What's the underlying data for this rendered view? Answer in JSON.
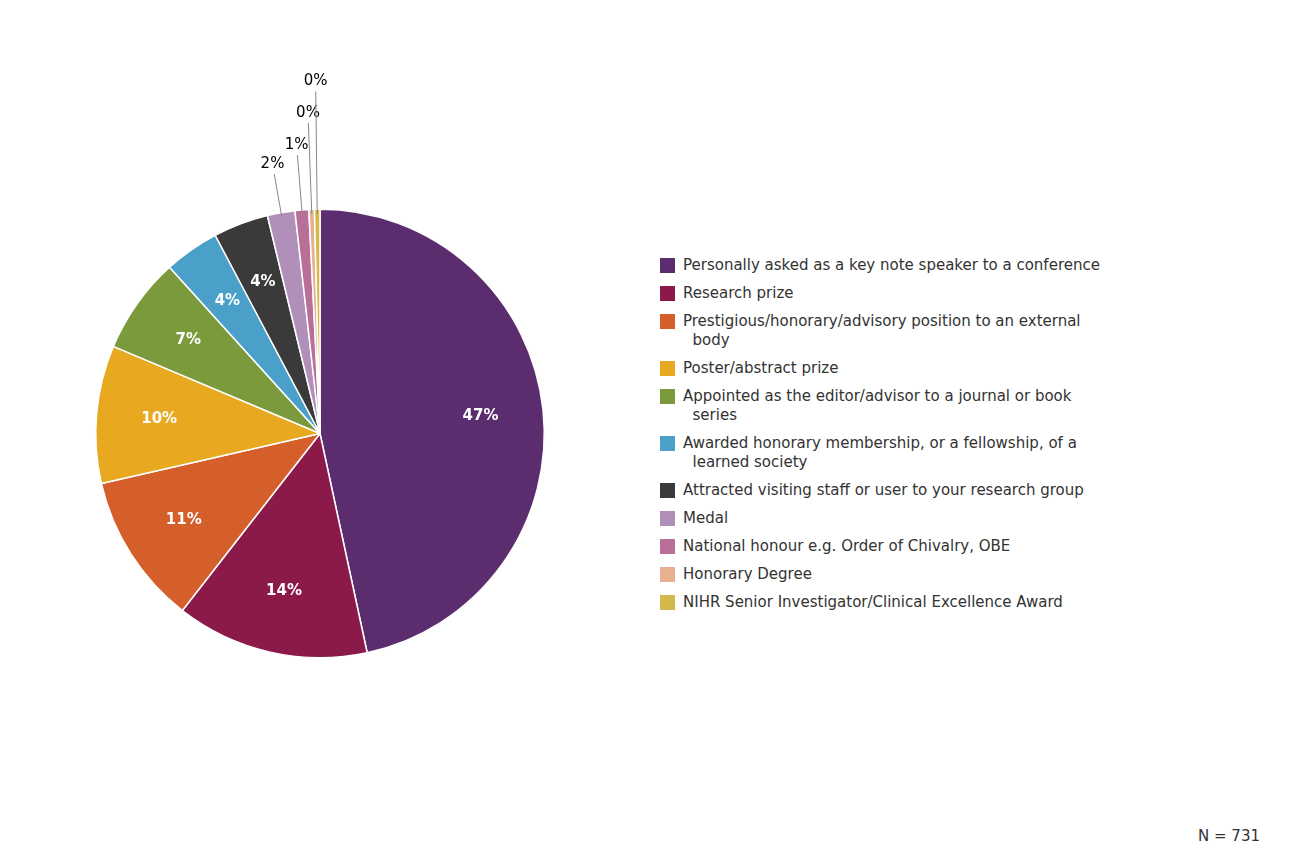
{
  "chart_data": {
    "type": "pie",
    "categories": [
      "Personally asked as a key note speaker to a conference",
      "Research prize",
      "Prestigious/honorary/advisory position to an external\n  body",
      "Poster/abstract prize",
      "Appointed as the editor/advisor to a journal or book\n  series",
      "Awarded honorary membership, or a fellowship, of a\n  learned society",
      "Attracted visiting staff or user to your research group",
      "Medal",
      "National honour e.g. Order of Chivalry, OBE",
      "Honorary Degree",
      "NIHR Senior Investigator/Clinical Excellence Award"
    ],
    "values": [
      47,
      14,
      11,
      10,
      7,
      4,
      4,
      2,
      1,
      0.4,
      0.4
    ],
    "value_labels": [
      "47%",
      "14%",
      "11%",
      "10%",
      "7%",
      "4%",
      "4%",
      "2%",
      "1%",
      "0%",
      "0%"
    ],
    "colors": [
      "#5c2d6e",
      "#8b1a4a",
      "#d45f2a",
      "#e8a820",
      "#7a9a3c",
      "#4aa0c8",
      "#3a3a3a",
      "#b090b8",
      "#b87098",
      "#e8b090",
      "#d4b84a"
    ],
    "data_labels": true,
    "legend": "right",
    "annotations": [
      "N = 731"
    ]
  }
}
